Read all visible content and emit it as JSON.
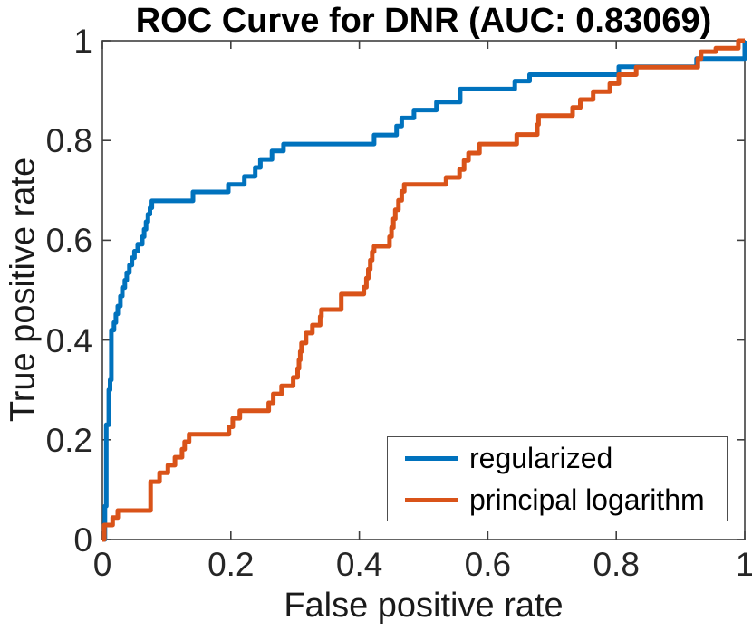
{
  "colors": {
    "blue": "#0072BD",
    "orange": "#D95319",
    "axis": "#3f3f3f",
    "tick_text": "#262626",
    "background": "#FFFFFF"
  },
  "chart_data": {
    "type": "line",
    "subtype": "roc-step-curves",
    "title": "ROC Curve for DNR (AUC: 0.83069)",
    "auc": 0.83069,
    "xlabel": "False positive rate",
    "ylabel": "True positive rate",
    "xlim": [
      0,
      1
    ],
    "ylim": [
      0,
      1
    ],
    "grid": false,
    "box": true,
    "tick_direction": "in",
    "legend_position": "southeast",
    "x_ticks": [
      "0",
      "0.2",
      "0.4",
      "0.6",
      "0.8",
      "1"
    ],
    "x_tick_values": [
      0,
      0.2,
      0.4,
      0.6,
      0.8,
      1
    ],
    "y_ticks": [
      "0",
      "0.2",
      "0.4",
      "0.6",
      "0.8",
      "1"
    ],
    "y_tick_values": [
      0,
      0.2,
      0.4,
      0.6,
      0.8,
      1
    ],
    "series": [
      {
        "name": "regularized",
        "color": "#0072BD",
        "points": [
          [
            0,
            0
          ],
          [
            0.004,
            0.067
          ],
          [
            0.006,
            0.23
          ],
          [
            0.01,
            0.3
          ],
          [
            0.012,
            0.32
          ],
          [
            0.014,
            0.42
          ],
          [
            0.018,
            0.435
          ],
          [
            0.021,
            0.452
          ],
          [
            0.024,
            0.468
          ],
          [
            0.028,
            0.488
          ],
          [
            0.031,
            0.505
          ],
          [
            0.035,
            0.52
          ],
          [
            0.038,
            0.535
          ],
          [
            0.042,
            0.55
          ],
          [
            0.046,
            0.565
          ],
          [
            0.05,
            0.578
          ],
          [
            0.055,
            0.592
          ],
          [
            0.062,
            0.607
          ],
          [
            0.065,
            0.622
          ],
          [
            0.068,
            0.637
          ],
          [
            0.071,
            0.652
          ],
          [
            0.074,
            0.665
          ],
          [
            0.077,
            0.679
          ],
          [
            0.141,
            0.697
          ],
          [
            0.196,
            0.712
          ],
          [
            0.221,
            0.728
          ],
          [
            0.238,
            0.746
          ],
          [
            0.246,
            0.762
          ],
          [
            0.264,
            0.779
          ],
          [
            0.282,
            0.793
          ],
          [
            0.423,
            0.811
          ],
          [
            0.458,
            0.829
          ],
          [
            0.466,
            0.845
          ],
          [
            0.485,
            0.861
          ],
          [
            0.52,
            0.877
          ],
          [
            0.557,
            0.903
          ],
          [
            0.642,
            0.919
          ],
          [
            0.665,
            0.932
          ],
          [
            0.804,
            0.948
          ],
          [
            0.925,
            0.964
          ],
          [
            1.0,
            1.0
          ]
        ]
      },
      {
        "name": "principal logarithm",
        "color": "#D95319",
        "points": [
          [
            0,
            0
          ],
          [
            0.003,
            0.029
          ],
          [
            0.016,
            0.044
          ],
          [
            0.024,
            0.058
          ],
          [
            0.075,
            0.116
          ],
          [
            0.089,
            0.134
          ],
          [
            0.102,
            0.149
          ],
          [
            0.113,
            0.165
          ],
          [
            0.124,
            0.181
          ],
          [
            0.128,
            0.196
          ],
          [
            0.135,
            0.211
          ],
          [
            0.197,
            0.226
          ],
          [
            0.203,
            0.243
          ],
          [
            0.214,
            0.258
          ],
          [
            0.259,
            0.274
          ],
          [
            0.266,
            0.292
          ],
          [
            0.279,
            0.308
          ],
          [
            0.297,
            0.325
          ],
          [
            0.304,
            0.343
          ],
          [
            0.306,
            0.36
          ],
          [
            0.308,
            0.377
          ],
          [
            0.31,
            0.394
          ],
          [
            0.317,
            0.414
          ],
          [
            0.327,
            0.43
          ],
          [
            0.339,
            0.447
          ],
          [
            0.341,
            0.461
          ],
          [
            0.372,
            0.492
          ],
          [
            0.407,
            0.506
          ],
          [
            0.411,
            0.524
          ],
          [
            0.414,
            0.542
          ],
          [
            0.417,
            0.56
          ],
          [
            0.42,
            0.577
          ],
          [
            0.423,
            0.588
          ],
          [
            0.447,
            0.607
          ],
          [
            0.45,
            0.625
          ],
          [
            0.453,
            0.643
          ],
          [
            0.456,
            0.661
          ],
          [
            0.461,
            0.68
          ],
          [
            0.466,
            0.698
          ],
          [
            0.47,
            0.712
          ],
          [
            0.535,
            0.726
          ],
          [
            0.556,
            0.742
          ],
          [
            0.563,
            0.76
          ],
          [
            0.57,
            0.775
          ],
          [
            0.587,
            0.793
          ],
          [
            0.645,
            0.812
          ],
          [
            0.677,
            0.832
          ],
          [
            0.679,
            0.85
          ],
          [
            0.732,
            0.866
          ],
          [
            0.744,
            0.882
          ],
          [
            0.764,
            0.898
          ],
          [
            0.79,
            0.914
          ],
          [
            0.804,
            0.932
          ],
          [
            0.831,
            0.947
          ],
          [
            0.927,
            0.964
          ],
          [
            0.932,
            0.978
          ],
          [
            0.955,
            0.985
          ],
          [
            0.99,
            1.0
          ],
          [
            1.0,
            1.0
          ]
        ]
      }
    ]
  }
}
